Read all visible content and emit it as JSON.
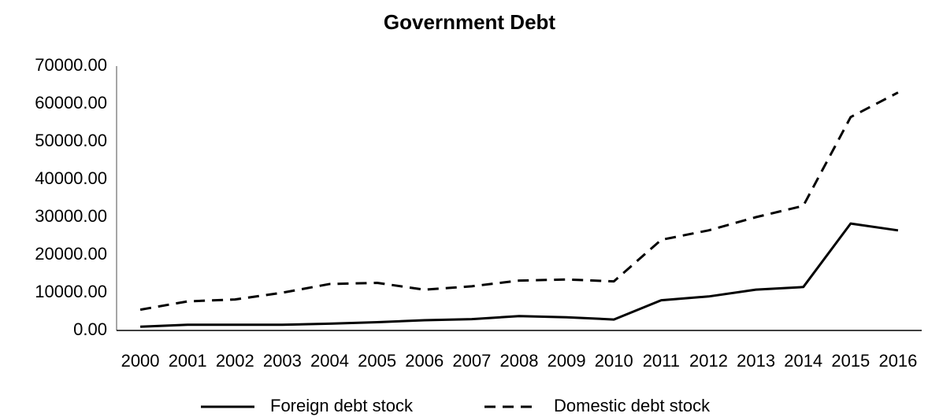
{
  "chart_data": {
    "type": "line",
    "title": "Government Debt",
    "categories": [
      "2000",
      "2001",
      "2002",
      "2003",
      "2004",
      "2005",
      "2006",
      "2007",
      "2008",
      "2009",
      "2010",
      "2011",
      "2012",
      "2013",
      "2014",
      "2015",
      "2016"
    ],
    "series": [
      {
        "name": "Foreign debt stock",
        "color": "#000000",
        "line_style": "solid",
        "values": [
          1000,
          1500,
          1500,
          1500,
          1800,
          2200,
          2700,
          3000,
          3800,
          3500,
          2900,
          8000,
          9000,
          10800,
          11500,
          28300,
          26500
        ]
      },
      {
        "name": "Domestic debt stock",
        "color": "#000000",
        "line_style": "dashed",
        "values": [
          5500,
          7700,
          8200,
          10000,
          12300,
          12600,
          10800,
          11700,
          13200,
          13500,
          13000,
          24000,
          26500,
          30000,
          33000,
          56500,
          63000
        ]
      }
    ],
    "ylim": [
      0,
      70000
    ],
    "yticks": [
      {
        "value": 0,
        "label": "0.00"
      },
      {
        "value": 10000,
        "label": "10000.00"
      },
      {
        "value": 20000,
        "label": "20000.00"
      },
      {
        "value": 30000,
        "label": "30000.00"
      },
      {
        "value": 40000,
        "label": "40000.00"
      },
      {
        "value": 50000,
        "label": "50000.00"
      },
      {
        "value": 60000,
        "label": "60000.00"
      },
      {
        "value": 70000,
        "label": "70000.00"
      }
    ],
    "grid": false,
    "legend": "bottom"
  }
}
